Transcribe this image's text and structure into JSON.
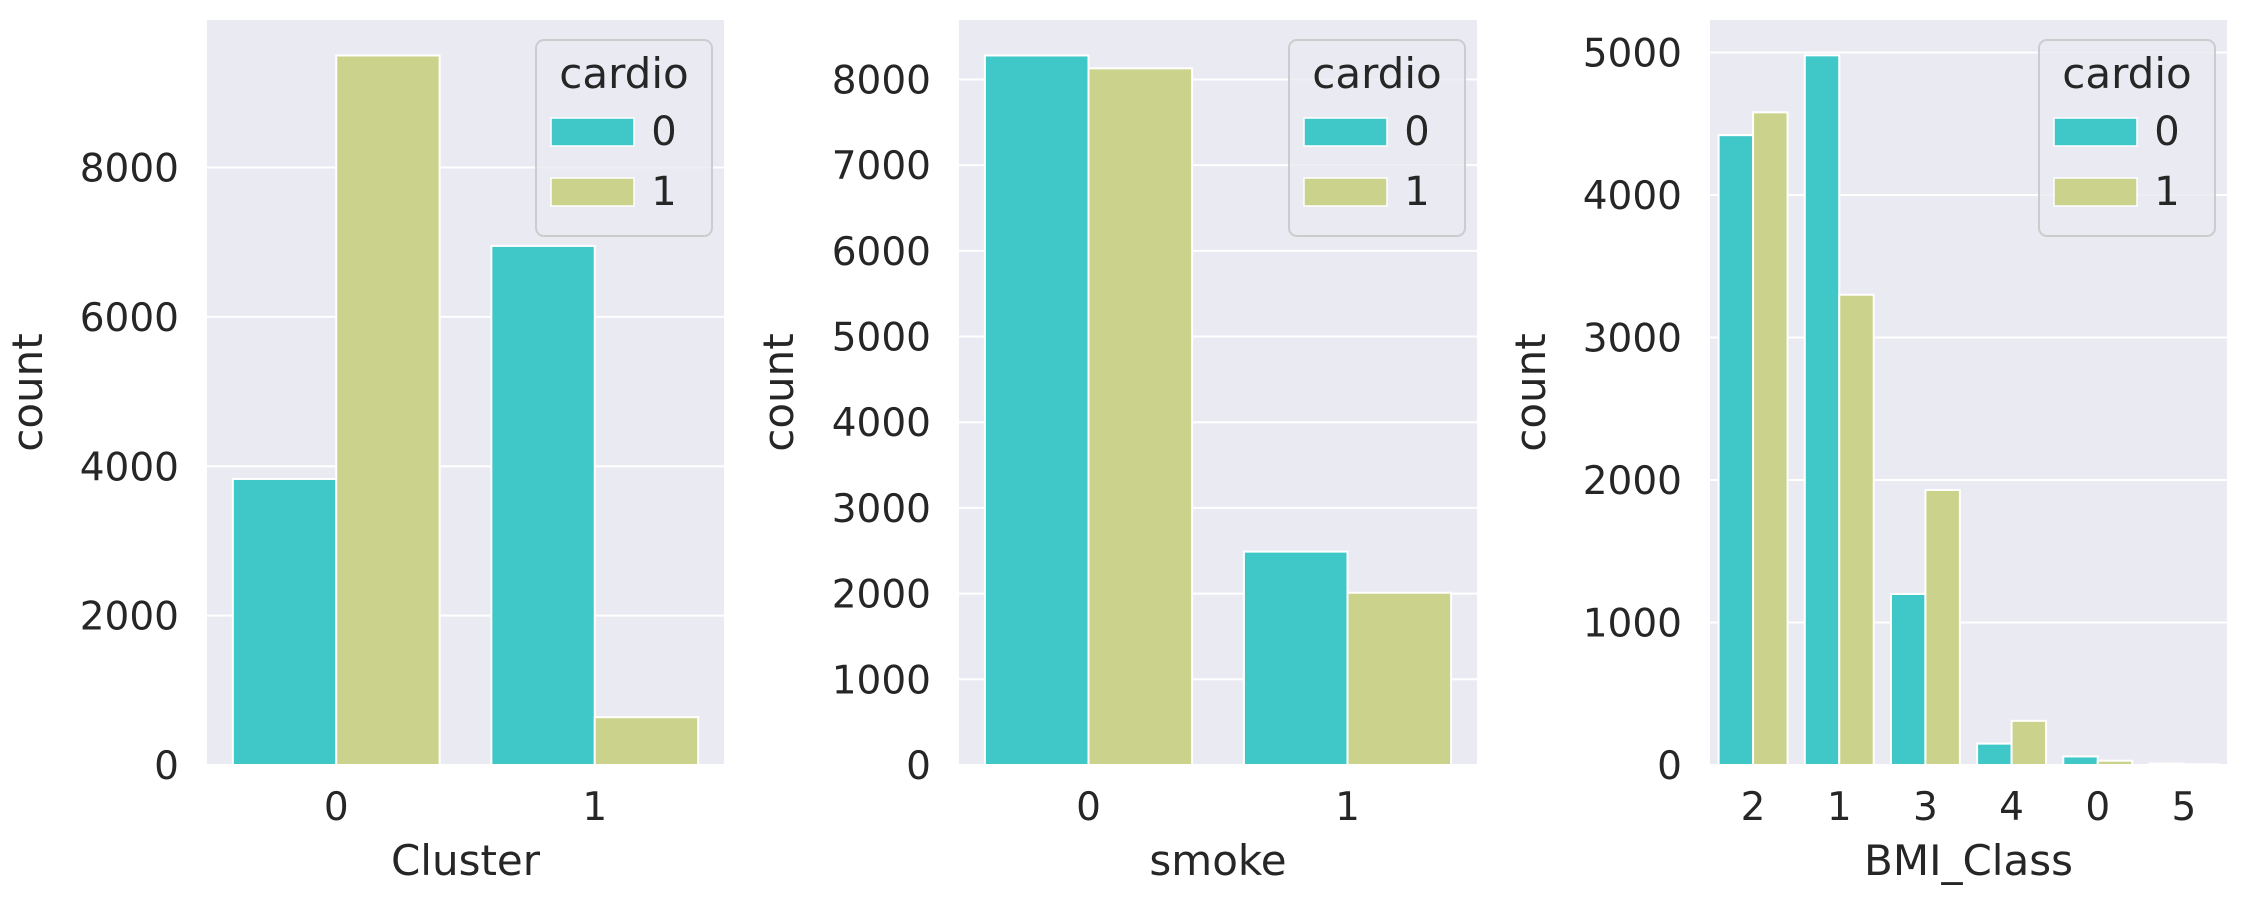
{
  "palette": {
    "cardio_0": "#40c7c8",
    "cardio_1": "#cbd28b",
    "background": "#eaeaf2",
    "grid": "#ffffff"
  },
  "chart_data": [
    {
      "type": "bar",
      "categories": [
        "0",
        "1"
      ],
      "series": [
        {
          "name": "0",
          "values": [
            3830,
            6950
          ]
        },
        {
          "name": "1",
          "values": [
            9500,
            640
          ]
        }
      ],
      "xlabel": "Cluster",
      "ylabel": "count",
      "ylim": [
        0,
        9975
      ],
      "yticks": [
        0,
        2000,
        4000,
        6000,
        8000
      ],
      "grid": true,
      "legend": {
        "title": "cardio",
        "placement": "top-right"
      }
    },
    {
      "type": "bar",
      "categories": [
        "0",
        "1"
      ],
      "series": [
        {
          "name": "0",
          "values": [
            8280,
            2490
          ]
        },
        {
          "name": "1",
          "values": [
            8130,
            2010
          ]
        }
      ],
      "xlabel": "smoke",
      "ylabel": "count",
      "ylim": [
        0,
        8694
      ],
      "yticks": [
        0,
        1000,
        2000,
        3000,
        4000,
        5000,
        6000,
        7000,
        8000
      ],
      "grid": true,
      "legend": {
        "title": "cardio",
        "placement": "top-right"
      }
    },
    {
      "type": "bar",
      "categories": [
        "2",
        "1",
        "3",
        "4",
        "0",
        "5"
      ],
      "series": [
        {
          "name": "0",
          "values": [
            4420,
            4980,
            1200,
            150,
            60,
            10
          ]
        },
        {
          "name": "1",
          "values": [
            4580,
            3300,
            1930,
            310,
            30,
            5
          ]
        }
      ],
      "xlabel": "BMI_Class",
      "ylabel": "count",
      "ylim": [
        0,
        5228
      ],
      "yticks": [
        0,
        1000,
        2000,
        3000,
        4000,
        5000
      ],
      "grid": true,
      "legend": {
        "title": "cardio",
        "placement": "top-right"
      }
    }
  ]
}
